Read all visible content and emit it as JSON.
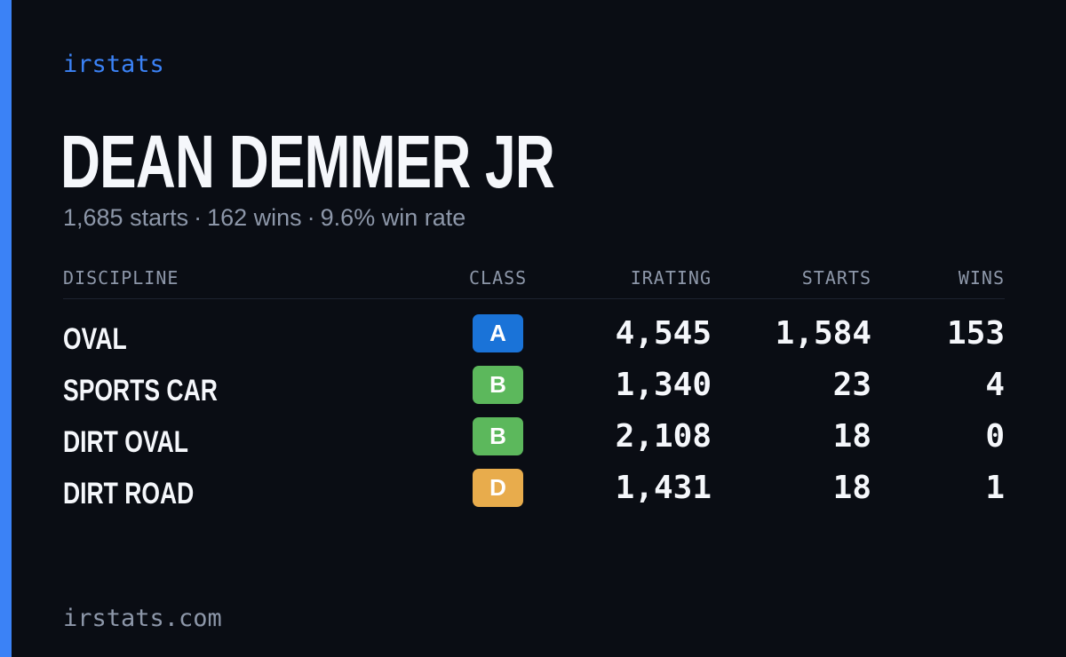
{
  "brand": {
    "name": "irstats",
    "accent_color": "#3b82f6"
  },
  "driver": {
    "name": "DEAN DEMMER JR",
    "starts_text": "1,685 starts",
    "wins_text": "162 wins",
    "win_rate_text": "9.6% win rate",
    "separator": "·"
  },
  "table": {
    "columns": {
      "discipline": "DISCIPLINE",
      "class": "CLASS",
      "irating": "IRATING",
      "starts": "STARTS",
      "wins": "WINS"
    },
    "rows": [
      {
        "discipline": "OVAL",
        "class": "A",
        "class_color": "#1a73d8",
        "irating": "4,545",
        "starts": "1,584",
        "wins": "153"
      },
      {
        "discipline": "SPORTS CAR",
        "class": "B",
        "class_color": "#5cb85c",
        "irating": "1,340",
        "starts": "23",
        "wins": "4"
      },
      {
        "discipline": "DIRT OVAL",
        "class": "B",
        "class_color": "#5cb85c",
        "irating": "2,108",
        "starts": "18",
        "wins": "0"
      },
      {
        "discipline": "DIRT ROAD",
        "class": "D",
        "class_color": "#e8ac4c",
        "irating": "1,431",
        "starts": "18",
        "wins": "1"
      }
    ]
  },
  "footer": {
    "site": "irstats.com"
  }
}
